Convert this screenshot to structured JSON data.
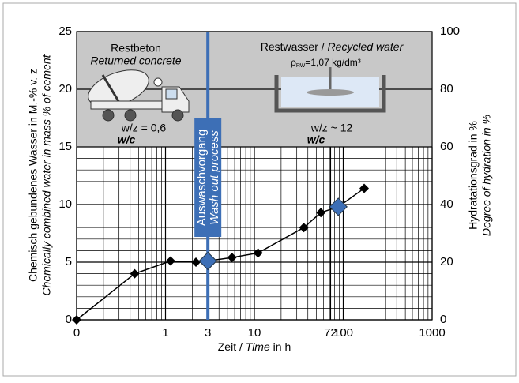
{
  "chart_data": {
    "type": "line",
    "x": [
      0.1,
      0.45,
      1.14,
      2.2,
      3,
      5.6,
      11,
      36,
      56,
      88,
      172
    ],
    "values": [
      0,
      4.0,
      5.1,
      5.0,
      5.1,
      5.4,
      5.8,
      8.0,
      9.3,
      9.8,
      11.4
    ],
    "color": "#000000",
    "marker_colors": [
      "#000000",
      "#000000",
      "#000000",
      "#000000",
      "#3d6fb6",
      "#000000",
      "#000000",
      "#000000",
      "#000000",
      "#3d6fb6",
      "#000000"
    ],
    "xscale": "log",
    "xlim": [
      0.1,
      1000
    ],
    "xticks": [
      {
        "value": 0.1,
        "label": "0"
      },
      1,
      3,
      10,
      72,
      100,
      1000
    ],
    "x_minor_ticks": [
      0.2,
      0.3,
      0.4,
      0.5,
      0.6,
      0.7,
      0.8,
      0.9,
      2,
      3,
      4,
      5,
      6,
      7,
      8,
      9,
      20,
      30,
      40,
      50,
      60,
      70,
      80,
      90,
      200,
      300,
      400,
      500,
      600,
      700,
      800,
      900
    ],
    "ylim": [
      0,
      25
    ],
    "yticks": [
      0,
      5,
      10,
      15,
      20,
      25
    ],
    "y_minor_ticks": [
      1,
      2,
      3,
      4,
      6,
      7,
      8,
      9,
      11,
      12,
      13,
      14
    ],
    "y2lim": [
      0,
      100
    ],
    "y2ticks": [
      0,
      20,
      40,
      60,
      80,
      100
    ],
    "grid": true,
    "xlabel": [
      "Zeit / ",
      "Time",
      " in h"
    ],
    "ylabel": "Chemisch gebundenes Wasser in M.-% v. z",
    "ylabel_en": "Chemically combined water in mass % of cement",
    "y2label": "Hydratationsgrad in %",
    "y2label_en": "Degree of hydration in %",
    "panel_ylim": [
      15,
      25
    ],
    "panel_left": {
      "title": "Restbeton",
      "title_en": "Returned concrete",
      "ratio": "w/z = 0,6",
      "ratio_en": "w/c"
    },
    "panel_right": {
      "title": [
        "Restwasser / ",
        "Recycled water"
      ],
      "density_symbol": "ρ",
      "density_sub": "RW",
      "density": "=1,07 kg/dm³",
      "ratio": "w/z ~ 12",
      "ratio_en": "w/c"
    },
    "wash_out": {
      "x": 3,
      "label": "Auswaschvorgang",
      "label_en": "Wash out process",
      "color": "#3d6fb6"
    }
  }
}
